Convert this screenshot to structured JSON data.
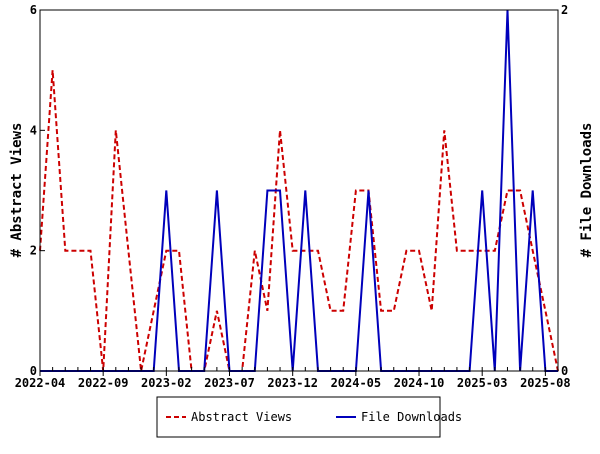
{
  "chart_data": {
    "type": "line",
    "title": "",
    "xlabel": "",
    "ylabel": "# Abstract Views",
    "y2label": "# File Downloads",
    "ylim": [
      0,
      6
    ],
    "y2lim": [
      0,
      2
    ],
    "yticks": [
      "0",
      "2",
      "4",
      "6"
    ],
    "y2ticks": [
      "0",
      "2"
    ],
    "xtick_labels": [
      "2022-04",
      "2022-09",
      "2023-02",
      "2023-07",
      "2023-12",
      "2024-05",
      "2024-10",
      "2025-03",
      "2025-08"
    ],
    "x": [
      "2022-04",
      "2022-05",
      "2022-06",
      "2022-07",
      "2022-08",
      "2022-09",
      "2022-10",
      "2022-11",
      "2022-12",
      "2023-01",
      "2023-02",
      "2023-03",
      "2023-04",
      "2023-05",
      "2023-06",
      "2023-07",
      "2023-08",
      "2023-09",
      "2023-10",
      "2023-11",
      "2023-12",
      "2024-01",
      "2024-02",
      "2024-03",
      "2024-04",
      "2024-05",
      "2024-06",
      "2024-07",
      "2024-08",
      "2024-09",
      "2024-10",
      "2024-11",
      "2024-12",
      "2025-01",
      "2025-02",
      "2025-03",
      "2025-04",
      "2025-05",
      "2025-06",
      "2025-07",
      "2025-08",
      "2025-09"
    ],
    "series": [
      {
        "name": "Abstract Views",
        "axis": "left",
        "color": "#cc0000",
        "style": "dashed",
        "values": [
          2,
          5,
          2,
          2,
          2,
          0,
          4,
          2,
          0,
          1,
          2,
          2,
          0,
          0,
          1,
          0,
          0,
          2,
          1,
          4,
          2,
          2,
          2,
          1,
          1,
          3,
          3,
          1,
          1,
          2,
          2,
          1,
          4,
          2,
          2,
          2,
          2,
          3,
          3,
          2,
          1,
          0
        ]
      },
      {
        "name": "File Downloads",
        "axis": "right",
        "color": "#0000bb",
        "style": "solid",
        "values": [
          0,
          0,
          0,
          0,
          0,
          0,
          0,
          0,
          0,
          0,
          1,
          0,
          0,
          0,
          1,
          0,
          0,
          0,
          1,
          1,
          0,
          1,
          0,
          0,
          0,
          0,
          1,
          0,
          0,
          0,
          0,
          0,
          0,
          0,
          0,
          1,
          0,
          2,
          0,
          1,
          0,
          0
        ]
      }
    ],
    "grid": false,
    "legend_position": "bottom"
  }
}
